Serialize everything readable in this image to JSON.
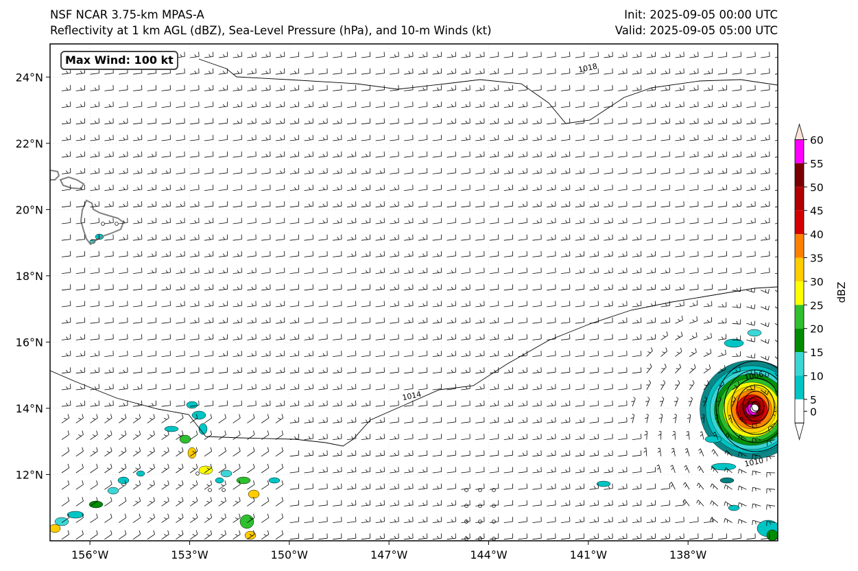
{
  "title": {
    "left_line1": "NSF NCAR 3.75-km MPAS-A",
    "left_line2": "Reflectivity at 1 km AGL (dBZ), Sea-Level Pressure (hPa), and 10-m Winds (kt)",
    "right_line1": "Init: 2025-09-05 00:00 UTC",
    "right_line2": "Valid: 2025-09-05 05:00 UTC"
  },
  "annotation": {
    "max_wind": "Max Wind: 100 kt"
  },
  "map": {
    "lon_range": [
      -157.2,
      -135.3
    ],
    "lat_range": [
      10.0,
      25.0
    ],
    "lon_ticks": [
      {
        "value": -156,
        "label": "156°W"
      },
      {
        "value": -153,
        "label": "153°W"
      },
      {
        "value": -150,
        "label": "150°W"
      },
      {
        "value": -147,
        "label": "147°W"
      },
      {
        "value": -144,
        "label": "144°W"
      },
      {
        "value": -141,
        "label": "141°W"
      },
      {
        "value": -138,
        "label": "138°W"
      }
    ],
    "lat_ticks": [
      {
        "value": 24,
        "label": "24°N"
      },
      {
        "value": 22,
        "label": "22°N"
      },
      {
        "value": 20,
        "label": "20°N"
      },
      {
        "value": 18,
        "label": "18°N"
      },
      {
        "value": 16,
        "label": "16°N"
      },
      {
        "value": 14,
        "label": "14°N"
      },
      {
        "value": 12,
        "label": "12°N"
      }
    ],
    "isobar_labels": [
      {
        "text": "1018",
        "lon": -141.0,
        "lat": 24.2
      },
      {
        "text": "1014",
        "lon": -146.3,
        "lat": 14.3
      },
      {
        "text": "1006",
        "lon": -136.0,
        "lat": 14.9
      },
      {
        "text": "1010",
        "lon": -136.0,
        "lat": 12.3
      }
    ],
    "cyclone_center": {
      "lon": -136.0,
      "lat": 14.0
    },
    "colors": {
      "coast": "#7f7f7f",
      "isobar": "#000000",
      "barb": "#000000"
    }
  },
  "colorbar": {
    "label": "dBZ",
    "ticks": [
      "0",
      "5",
      "10",
      "15",
      "20",
      "25",
      "30",
      "35",
      "40",
      "45",
      "50",
      "55",
      "60"
    ],
    "colors": [
      "#008080",
      "#00c5c5",
      "#3dd6d6",
      "#008c00",
      "#2fbf2f",
      "#ffff00",
      "#ffcc00",
      "#ff8000",
      "#d40000",
      "#b00000",
      "#7a0000",
      "#ff00ff",
      "#ffe4d8"
    ]
  }
}
